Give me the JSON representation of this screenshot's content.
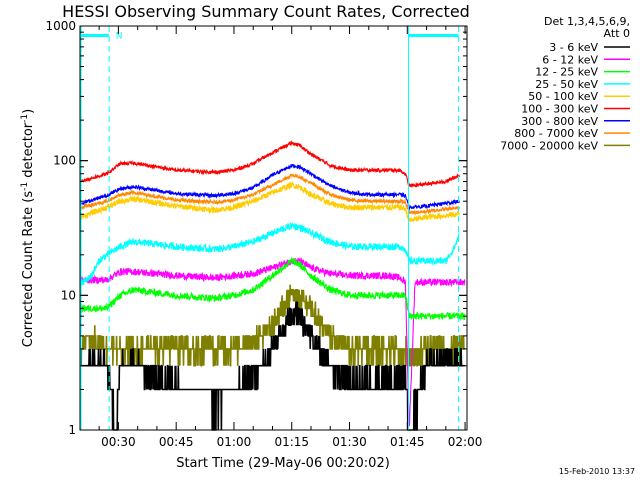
{
  "chart_data": {
    "type": "line",
    "title": "HESSI Observing Summary Count Rates, Corrected",
    "xlabel": "Start Time (29-May-06 00:20:02)",
    "ylabel_main": "Corrected Count Rate (s",
    "ylabel_sup1": "-1",
    "ylabel_mid": " detector",
    "ylabel_sup2": "-1",
    "ylabel_end": ")",
    "y_scale": "log",
    "ylim": [
      1,
      1000
    ],
    "xlim_minutes": [
      20.03,
      120.5
    ],
    "x_ticks": [
      {
        "m": 30,
        "label": "00:30"
      },
      {
        "m": 45,
        "label": "00:45"
      },
      {
        "m": 60,
        "label": "01:00"
      },
      {
        "m": 75,
        "label": "01:15"
      },
      {
        "m": 90,
        "label": "01:30"
      },
      {
        "m": 105,
        "label": "01:45"
      },
      {
        "m": 120,
        "label": "02:00"
      }
    ],
    "y_ticks": [
      {
        "v": 1,
        "label": "1"
      },
      {
        "v": 10,
        "label": "10"
      },
      {
        "v": 100,
        "label": "100"
      },
      {
        "v": 1000,
        "label": "1000"
      }
    ],
    "legend_header": [
      "Det 1,3,4,5,6,9,",
      "Att 0"
    ],
    "legend_position": "right-outside",
    "series": [
      {
        "name": "3 - 6 keV",
        "color": "#000000",
        "x": [
          20.1,
          27,
          29.5,
          30.5,
          34,
          38,
          45,
          50,
          55,
          60,
          65,
          70,
          73,
          75,
          77,
          80,
          85,
          88,
          90,
          95,
          100,
          104.5,
          105.5,
          110,
          120
        ],
        "y": [
          3.0,
          3.0,
          1.0,
          3.0,
          3.2,
          2.6,
          2.2,
          2.0,
          1.6,
          2.0,
          2.5,
          4.0,
          6.0,
          7.5,
          7.0,
          5.0,
          3.0,
          2.5,
          2.3,
          2.3,
          2.3,
          2.4,
          1.0,
          3.2,
          3.2
        ]
      },
      {
        "name": "6 - 12 keV",
        "color": "#ff00ff",
        "x": [
          20.1,
          27,
          30.5,
          34,
          45,
          55,
          60,
          65,
          70,
          75,
          77,
          80,
          85,
          90,
          95,
          100,
          103,
          104.5,
          105.5,
          107,
          120
        ],
        "y": [
          13,
          13,
          15,
          15,
          14,
          13.5,
          14,
          14.5,
          16,
          18,
          18,
          16,
          14.5,
          14,
          14,
          14,
          13.5,
          12.5,
          1.0,
          12.5,
          12.5
        ]
      },
      {
        "name": "12 - 25 keV",
        "color": "#00ff00",
        "x": [
          20.1,
          27,
          30.5,
          34,
          45,
          55,
          60,
          65,
          70,
          75,
          77,
          80,
          85,
          90,
          95,
          100,
          103,
          104.5,
          105.5,
          107,
          120
        ],
        "y": [
          8,
          8,
          10,
          11,
          10,
          9.5,
          10,
          11,
          14,
          18,
          17,
          14,
          11,
          10,
          10,
          10,
          10,
          10,
          7,
          7,
          7
        ]
      },
      {
        "name": "25 - 50 keV",
        "color": "#00ffff",
        "x": [
          20.1,
          23,
          25,
          27,
          30.5,
          34,
          45,
          55,
          60,
          65,
          70,
          75,
          77,
          80,
          85,
          90,
          95,
          100,
          103,
          104.5,
          105.5,
          110,
          115,
          117,
          118.5
        ],
        "y": [
          12,
          14,
          18,
          20,
          23,
          25,
          23,
          22,
          23,
          25,
          29,
          33,
          32,
          29,
          25,
          23,
          23,
          23,
          23,
          22,
          18,
          18,
          18,
          22,
          28
        ]
      },
      {
        "name": "50 - 100 keV",
        "color": "#ffcc00",
        "x": [
          20.1,
          27,
          30.5,
          34,
          45,
          55,
          60,
          65,
          70,
          75,
          77,
          80,
          85,
          90,
          95,
          100,
          103,
          104.5,
          105.5,
          110,
          118.5
        ],
        "y": [
          38,
          45,
          50,
          52,
          46,
          43,
          45,
          50,
          58,
          66,
          64,
          56,
          48,
          45,
          45,
          45,
          45,
          44,
          36,
          38,
          40
        ]
      },
      {
        "name": "100 - 300 keV",
        "color": "#ff0000",
        "x": [
          20.1,
          27,
          30.5,
          34,
          45,
          55,
          60,
          65,
          70,
          75,
          77,
          80,
          85,
          90,
          95,
          100,
          103,
          104.5,
          105.5,
          110,
          115,
          118.5
        ],
        "y": [
          70,
          80,
          95,
          96,
          85,
          82,
          85,
          95,
          115,
          135,
          130,
          112,
          92,
          85,
          85,
          85,
          85,
          80,
          65,
          67,
          70,
          78
        ]
      },
      {
        "name": "300 - 800 keV",
        "color": "#0000ff",
        "x": [
          20.1,
          27,
          30.5,
          34,
          45,
          55,
          60,
          65,
          70,
          75,
          77,
          80,
          85,
          90,
          95,
          100,
          103,
          104.5,
          105.5,
          110,
          118.5
        ],
        "y": [
          48,
          55,
          62,
          64,
          57,
          55,
          57,
          63,
          78,
          92,
          90,
          80,
          65,
          58,
          56,
          56,
          56,
          55,
          45,
          46,
          50
        ]
      },
      {
        "name": "800 - 7000 keV",
        "color": "#ff8800",
        "x": [
          20.1,
          27,
          30.5,
          34,
          45,
          55,
          60,
          65,
          70,
          75,
          77,
          80,
          85,
          90,
          95,
          100,
          103,
          104.5,
          105.5,
          110,
          118.5
        ],
        "y": [
          45,
          50,
          56,
          58,
          51,
          49,
          51,
          56,
          66,
          78,
          76,
          68,
          56,
          51,
          50,
          50,
          50,
          49,
          41,
          42,
          45
        ]
      },
      {
        "name": "7000 - 20000 keV",
        "color": "#808000",
        "x": [
          20.1,
          22,
          27,
          30.5,
          34,
          45,
          55,
          60,
          65,
          70,
          73,
          75,
          77,
          80,
          85,
          90,
          95,
          100,
          104.5,
          105.5,
          110,
          120
        ],
        "y": [
          3.5,
          5,
          4,
          4,
          4,
          4,
          4,
          4,
          4.5,
          6,
          8.5,
          10,
          9.5,
          8,
          5,
          4,
          4,
          4,
          4,
          3.5,
          4,
          4
        ]
      }
    ],
    "attenuator_bar": {
      "color": "#00ffff",
      "spans_minutes": [
        [
          20.1,
          27.5
        ],
        [
          105.3,
          118.3
        ]
      ],
      "level": 850,
      "marker_text": "N"
    },
    "vertical_markers": [
      {
        "m": 20.3,
        "style": "solid",
        "color": "#00ffff"
      },
      {
        "m": 27.6,
        "style": "dashed",
        "color": "#00ffff"
      },
      {
        "m": 105.3,
        "style": "solid",
        "color": "#00ffff"
      },
      {
        "m": 118.3,
        "style": "dashed",
        "color": "#00ffff"
      }
    ],
    "footer_date": "15-Feb-2010 13:37"
  }
}
